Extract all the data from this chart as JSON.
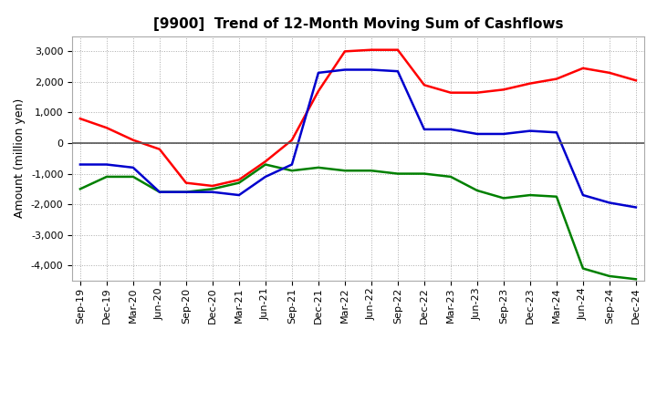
{
  "title": "[9900]  Trend of 12-Month Moving Sum of Cashflows",
  "ylabel": "Amount (million yen)",
  "x_labels": [
    "Sep-19",
    "Dec-19",
    "Mar-20",
    "Jun-20",
    "Sep-20",
    "Dec-20",
    "Mar-21",
    "Jun-21",
    "Sep-21",
    "Dec-21",
    "Mar-22",
    "Jun-22",
    "Sep-22",
    "Dec-22",
    "Mar-23",
    "Jun-23",
    "Sep-23",
    "Dec-23",
    "Mar-24",
    "Jun-24",
    "Sep-24",
    "Dec-24"
  ],
  "operating_cf": [
    800,
    500,
    100,
    -200,
    -1300,
    -1400,
    -1200,
    -600,
    100,
    1700,
    3000,
    3050,
    3050,
    1900,
    1650,
    1650,
    1750,
    1950,
    2100,
    2450,
    2300,
    2050
  ],
  "investing_cf": [
    -1500,
    -1100,
    -1100,
    -1600,
    -1600,
    -1500,
    -1300,
    -700,
    -900,
    -800,
    -900,
    -900,
    -1000,
    -1000,
    -1100,
    -1550,
    -1800,
    -1700,
    -1750,
    -4100,
    -4350,
    -4450
  ],
  "free_cf": [
    -700,
    -700,
    -800,
    -1600,
    -1600,
    -1600,
    -1700,
    -1100,
    -700,
    2300,
    2400,
    2400,
    2350,
    450,
    450,
    300,
    300,
    400,
    350,
    -1700,
    -1950,
    -2100
  ],
  "operating_color": "#ff0000",
  "investing_color": "#008000",
  "free_color": "#0000cd",
  "ylim": [
    -4500,
    3500
  ],
  "yticks": [
    -4000,
    -3000,
    -2000,
    -1000,
    0,
    1000,
    2000,
    3000
  ],
  "background_color": "#ffffff",
  "grid_color": "#aaaaaa",
  "zero_line_color": "#555555",
  "title_fontsize": 11,
  "legend_fontsize": 9,
  "tick_fontsize": 8
}
